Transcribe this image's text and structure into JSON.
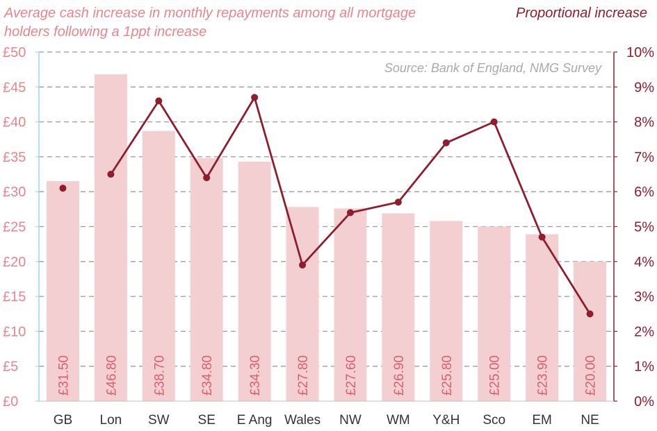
{
  "chart_data": {
    "type": "bar+line",
    "title_left": "Average cash increase in monthly repayments among all mortgage holders following a 1ppt increase",
    "title_right": "Proportional increase",
    "source": "Source: Bank of England, NMG Survey",
    "categories": [
      "GB",
      "Lon",
      "SW",
      "SE",
      "E Ang",
      "Wales",
      "NW",
      "WM",
      "Y&H",
      "Sco",
      "EM",
      "NE"
    ],
    "bar_values": [
      31.5,
      46.8,
      38.7,
      34.8,
      34.3,
      27.8,
      27.6,
      26.9,
      25.8,
      25.0,
      23.9,
      20.0
    ],
    "bar_labels": [
      "£31.50",
      "£46.80",
      "£38.70",
      "£34.80",
      "£34.30",
      "£27.80",
      "£27.60",
      "£26.90",
      "£25.80",
      "£25.00",
      "£23.90",
      "£20.00"
    ],
    "line_values": [
      6.1,
      6.5,
      8.6,
      6.4,
      8.7,
      3.9,
      5.4,
      5.7,
      7.4,
      8.0,
      4.7,
      2.5
    ],
    "line_connected_from_index": 1,
    "y_left": {
      "min": 0,
      "max": 50,
      "ticks": [
        "£0",
        "£5",
        "£10",
        "£15",
        "£20",
        "£25",
        "£30",
        "£35",
        "£40",
        "£45",
        "£50"
      ]
    },
    "y_right": {
      "min": 0,
      "max": 10,
      "ticks": [
        "0%",
        "1%",
        "2%",
        "3%",
        "4%",
        "5%",
        "6%",
        "7%",
        "8%",
        "9%",
        "10%"
      ]
    },
    "grid": true,
    "colors": {
      "bar": "#f4cfd2",
      "bar_label": "#d95f6e",
      "line": "#8e1d2d",
      "left_axis_text": "#e9848e",
      "right_axis_text": "#8e1d2d",
      "left_axis_line": "#9fd6e8",
      "right_axis_line": "#8e1d2d",
      "grid": "#9a9a9a",
      "source_text": "#a9a9a9",
      "category_text": "#333333"
    }
  }
}
